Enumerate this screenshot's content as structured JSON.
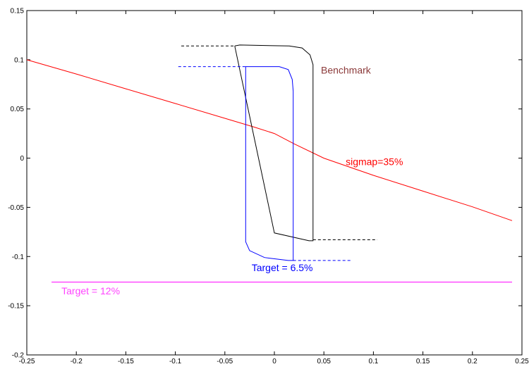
{
  "chart_data": {
    "type": "line",
    "title": "",
    "xlabel": "",
    "ylabel": "",
    "xlim": [
      -0.25,
      0.25
    ],
    "ylim": [
      -0.2,
      0.15
    ],
    "grid": false,
    "x_ticks": [
      "-0.25",
      "-0.2",
      "-0.15",
      "-0.1",
      "-0.05",
      "0",
      "0.05",
      "0.1",
      "0.15",
      "0.2",
      "0.25"
    ],
    "y_ticks": [
      "0.15",
      "0.1",
      "0.05",
      "0",
      "-0.05",
      "-0.1",
      "-0.15",
      "-0.2"
    ],
    "series": [
      {
        "color": "#ff0000",
        "style": "solid",
        "points": [
          [
            -0.25,
            0.1
          ],
          [
            -0.2,
            0.0855
          ],
          [
            -0.15,
            0.0705
          ],
          [
            -0.1,
            0.0555
          ],
          [
            -0.05,
            0.0405
          ],
          [
            -0.02,
            0.0315
          ],
          [
            0.0,
            0.025
          ],
          [
            0.02,
            0.0145
          ],
          [
            0.05,
            0.0
          ],
          [
            0.1,
            -0.0175
          ],
          [
            0.15,
            -0.0335
          ],
          [
            0.2,
            -0.0495
          ],
          [
            0.24,
            -0.0635
          ]
        ]
      },
      {
        "color": "#000000",
        "style": "solid",
        "points": [
          [
            -0.04,
            0.114
          ],
          [
            -0.035,
            0.115
          ],
          [
            0.015,
            0.114
          ],
          [
            0.028,
            0.112
          ],
          [
            0.036,
            0.105
          ],
          [
            0.039,
            0.095
          ],
          [
            0.039,
            -0.084
          ],
          [
            0.035,
            -0.084
          ],
          [
            0.0,
            -0.076
          ],
          [
            -0.04,
            0.114
          ]
        ]
      },
      {
        "color": "#0000ff",
        "style": "solid",
        "points": [
          [
            -0.027,
            0.093
          ],
          [
            0.005,
            0.093
          ],
          [
            0.014,
            0.09
          ],
          [
            0.018,
            0.08
          ],
          [
            0.019,
            0.068
          ],
          [
            0.019,
            -0.104
          ],
          [
            0.014,
            -0.104
          ],
          [
            -0.01,
            -0.101
          ],
          [
            -0.025,
            -0.094
          ],
          [
            -0.029,
            -0.085
          ],
          [
            -0.029,
            0.093
          ],
          [
            -0.027,
            0.093
          ]
        ]
      },
      {
        "color": "#ff00ff",
        "style": "solid",
        "points": [
          [
            -0.225,
            -0.126
          ],
          [
            0.24,
            -0.126
          ]
        ]
      },
      {
        "color": "#000000",
        "style": "dashed",
        "points": [
          [
            -0.094,
            0.114
          ],
          [
            -0.04,
            0.114
          ]
        ]
      },
      {
        "color": "#000000",
        "style": "dashed",
        "points": [
          [
            0.039,
            -0.083
          ],
          [
            0.104,
            -0.083
          ]
        ]
      },
      {
        "color": "#0000ff",
        "style": "dashed",
        "points": [
          [
            -0.097,
            0.093
          ],
          [
            -0.027,
            0.093
          ]
        ]
      },
      {
        "color": "#0000ff",
        "style": "dashed",
        "points": [
          [
            0.019,
            -0.104
          ],
          [
            0.078,
            -0.104
          ]
        ]
      }
    ],
    "annotations": [
      {
        "text": "Benchmark",
        "x": 0.047,
        "y": 0.086,
        "color": "#8b3a3a"
      },
      {
        "text": "sigmap=35%",
        "x": 0.072,
        "y": -0.007,
        "color": "#ff0000"
      },
      {
        "text": "Target = 6.5%",
        "x": -0.023,
        "y": -0.115,
        "color": "#0000ff"
      },
      {
        "text": "Target = 12%",
        "x": -0.215,
        "y": -0.1385,
        "color": "#ff44ff"
      }
    ]
  }
}
